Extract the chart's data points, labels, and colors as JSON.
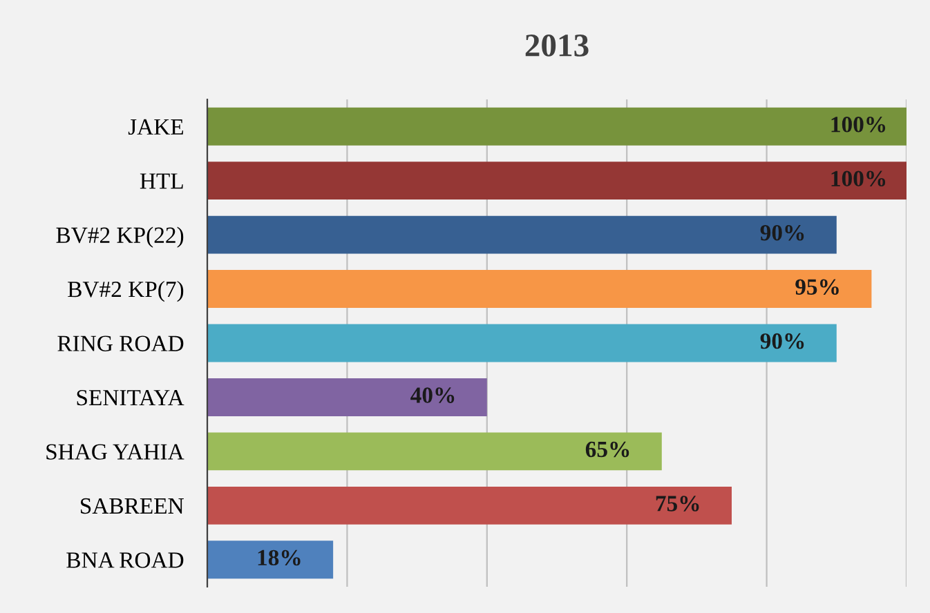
{
  "chart_data": {
    "type": "bar",
    "orientation": "horizontal",
    "title": "2013",
    "categories": [
      "JAKE",
      "HTL",
      "BV#2 KP(22)",
      "BV#2 KP(7)",
      "RING ROAD",
      "SENITAYA",
      "SHAG YAHIA",
      "SABREEN",
      "BNA ROAD"
    ],
    "values": [
      100,
      100,
      90,
      95,
      90,
      40,
      65,
      75,
      18
    ],
    "colors": [
      "#77933c",
      "#953735",
      "#376092",
      "#f79646",
      "#4bacc6",
      "#8064a2",
      "#9bbb59",
      "#c0504d",
      "#4f81bd"
    ],
    "value_labels": [
      "100%",
      "100%",
      "90%",
      "95%",
      "90%",
      "40%",
      "65%",
      "75%",
      "18%"
    ],
    "xlim": [
      0,
      100
    ],
    "xticks": [
      {
        "value": 0,
        "label": null
      },
      {
        "value": 20,
        "label": null
      },
      {
        "value": 40,
        "label": null
      },
      {
        "value": 60,
        "label": null
      },
      {
        "value": 80,
        "label": null
      },
      {
        "value": 100,
        "label": null
      }
    ],
    "grid": "x",
    "tick_labels": "y",
    "legend": false
  }
}
